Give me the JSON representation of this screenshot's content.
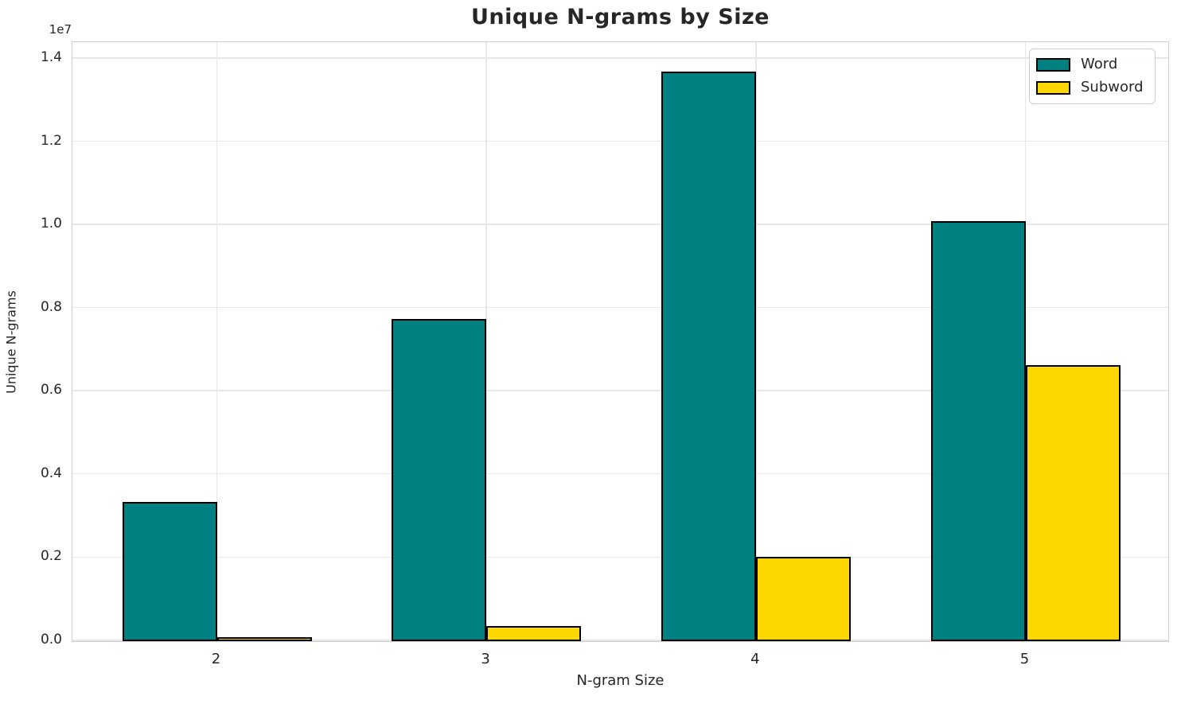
{
  "title": "Unique N-grams by Size",
  "axes": {
    "x_label": "N-gram Size",
    "y_label": "Unique N-grams",
    "y_offset_label": "1e7",
    "x_ticks": [
      "2",
      "3",
      "4",
      "5"
    ],
    "y_ticks": [
      "0.0",
      "0.2",
      "0.4",
      "0.6",
      "0.8",
      "1.0",
      "1.2",
      "1.4"
    ]
  },
  "legend": {
    "entries": [
      {
        "label": "Word",
        "color": "#008080"
      },
      {
        "label": "Subword",
        "color": "#FFD700"
      }
    ]
  },
  "colors": {
    "word_bar": "#008080",
    "subword_bar": "#FFD700",
    "bar_edge": "#000000",
    "grid": "#e7e7e7",
    "text": "#262626",
    "background": "#ffffff"
  },
  "chart_data": {
    "type": "bar",
    "title": "Unique N-grams by Size",
    "xlabel": "N-gram Size",
    "ylabel": "Unique N-grams",
    "categories": [
      "2",
      "3",
      "4",
      "5"
    ],
    "series": [
      {
        "name": "Word",
        "color": "#008080",
        "values": [
          3350000,
          7750000,
          13700000,
          10100000
        ]
      },
      {
        "name": "Subword",
        "color": "#FFD700",
        "values": [
          100000,
          360000,
          2030000,
          6640000
        ]
      }
    ],
    "ylim": [
      0,
      14385000
    ],
    "y_scale_factor": 10000000,
    "y_tick_values": [
      0,
      2000000,
      4000000,
      6000000,
      8000000,
      10000000,
      12000000,
      14000000
    ],
    "grid": true,
    "legend_position": "upper right",
    "bar_edge_color": "#000000"
  }
}
